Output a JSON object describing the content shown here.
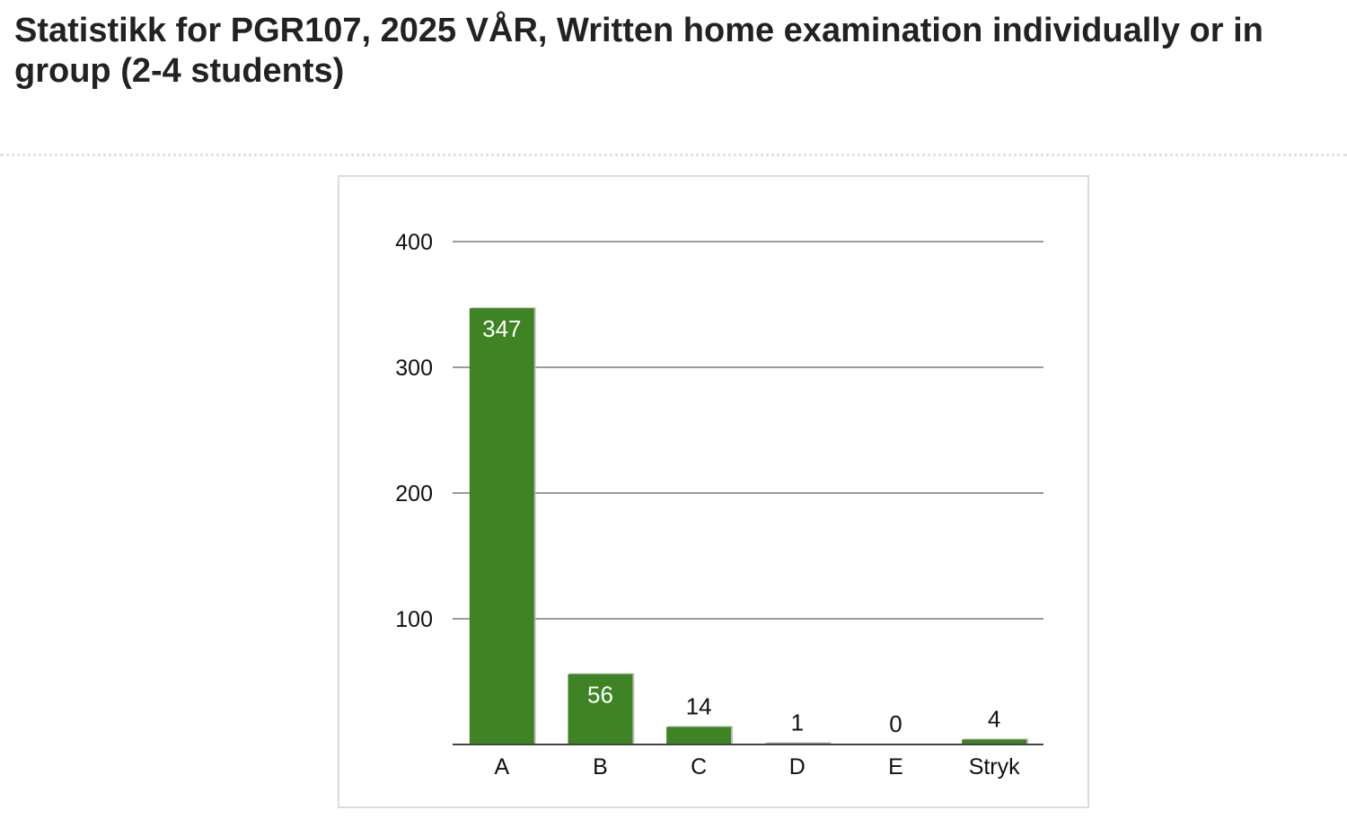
{
  "page": {
    "title": "Statistikk for PGR107, 2025 VÅR, Written home examination individually or in group (2-4 students)"
  },
  "chart_data": {
    "type": "bar",
    "categories": [
      "A",
      "B",
      "C",
      "D",
      "E",
      "Stryk"
    ],
    "values": [
      347,
      56,
      14,
      1,
      0,
      4
    ],
    "data_labels": [
      "347",
      "56",
      "14",
      "1",
      "0",
      "4"
    ],
    "title": "",
    "xlabel": "",
    "ylabel": "",
    "ylim": [
      0,
      400
    ],
    "yticks": [
      100,
      200,
      300,
      400
    ],
    "ytick_labels": [
      "100",
      "200",
      "300",
      "400"
    ],
    "grid": true,
    "legend": "none",
    "colors": {
      "bar": "#3f8424",
      "bar_shadow": "#b5b5b5",
      "gridline": "#7a7a7a",
      "label_inside": "#ffffff",
      "label_outside": "#111111"
    }
  }
}
